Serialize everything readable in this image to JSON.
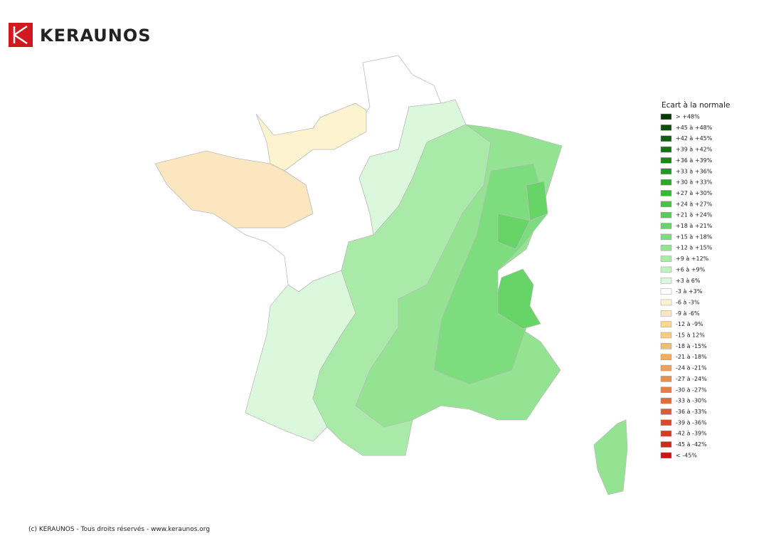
{
  "header": {
    "brand": "KERAUNOS"
  },
  "legend": {
    "title": "Ecart à la normale",
    "items": [
      {
        "label": "> +48%",
        "color": "#0a3a0a"
      },
      {
        "label": "+45 à +48%",
        "color": "#0e4d0e"
      },
      {
        "label": "+42 à +45%",
        "color": "#11600f"
      },
      {
        "label": "+39 à +42%",
        "color": "#167316"
      },
      {
        "label": "+36 à +39%",
        "color": "#1b861b"
      },
      {
        "label": "+33 à +36%",
        "color": "#229a22"
      },
      {
        "label": "+30 à +33%",
        "color": "#2aa82a"
      },
      {
        "label": "+27 à +30%",
        "color": "#35b835"
      },
      {
        "label": "+24 à +27%",
        "color": "#44c444"
      },
      {
        "label": "+21 à +24%",
        "color": "#55cc55"
      },
      {
        "label": "+18 à +21%",
        "color": "#66d466"
      },
      {
        "label": "+15 à +18%",
        "color": "#7ddc7d"
      },
      {
        "label": "+12 à +15%",
        "color": "#93e393"
      },
      {
        "label": "+9 à +12%",
        "color": "#a9eaa9"
      },
      {
        "label": "+6 à +9%",
        "color": "#c1f1c1"
      },
      {
        "label": "+3 à 6%",
        "color": "#dcf8dc"
      },
      {
        "label": "-3 à +3%",
        "color": "#ffffff"
      },
      {
        "label": "-6 à -3%",
        "color": "#fdf3cf"
      },
      {
        "label": "-9 à -6%",
        "color": "#fbe6bf"
      },
      {
        "label": "-12 à -9%",
        "color": "#f8d98f"
      },
      {
        "label": "-15 à 12%",
        "color": "#f5cc80"
      },
      {
        "label": "-18 à -15%",
        "color": "#f2bd6f"
      },
      {
        "label": "-21 à -18%",
        "color": "#efae62"
      },
      {
        "label": "-24 à -21%",
        "color": "#eca058"
      },
      {
        "label": "-27 à -24%",
        "color": "#e88f4e"
      },
      {
        "label": "-30 à -27%",
        "color": "#e47f45"
      },
      {
        "label": "-33 à -30%",
        "color": "#e06e3c"
      },
      {
        "label": "-36 à -33%",
        "color": "#dc5d34"
      },
      {
        "label": "-39 à -36%",
        "color": "#d84c2c"
      },
      {
        "label": "-42 à -39%",
        "color": "#d33b24"
      },
      {
        "label": "-45 à -42%",
        "color": "#cf2a1c"
      },
      {
        "label": "< -45%",
        "color": "#c41a12"
      }
    ]
  },
  "footer": {
    "text": "(c) KERAUNOS - Tous droits réservés - www.keraunos.org"
  }
}
